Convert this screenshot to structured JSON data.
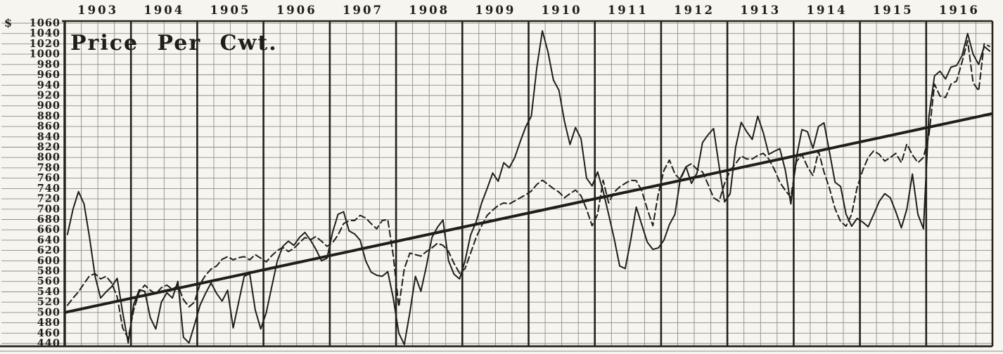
{
  "chart_data": {
    "type": "line",
    "title": "Price Per Cwt.",
    "currency_symbol": "$",
    "grid": true,
    "legend": "none",
    "colors": {
      "ink": "#211e17",
      "grid": "#8f8d85",
      "bold_grid": "#262219",
      "paper": "#f6f5f0"
    },
    "y_axis": {
      "min": 440,
      "max": 1060,
      "step": 20,
      "tick_labels": [
        "1060",
        "1040",
        "1020",
        "1000",
        "980",
        "960",
        "940",
        "920",
        "900",
        "880",
        "860",
        "840",
        "820",
        "800",
        "780",
        "760",
        "740",
        "720",
        "700",
        "680",
        "660",
        "640",
        "620",
        "600",
        "580",
        "560",
        "540",
        "520",
        "500",
        "480",
        "460",
        "440"
      ]
    },
    "x_axis": {
      "years": [
        "1903",
        "1904",
        "1905",
        "1906",
        "1907",
        "1908",
        "1909",
        "1910",
        "1911",
        "1912",
        "1913",
        "1914",
        "1915",
        "1916"
      ],
      "subdivisions_per_year": 4,
      "points_per_year": 12
    },
    "series": [
      {
        "name": "solid-price-line",
        "style": "solid",
        "values": [
          651,
          700,
          734,
          710,
          645,
          570,
          528,
          540,
          550,
          566,
          500,
          441,
          516,
          544,
          541,
          490,
          468,
          520,
          538,
          528,
          560,
          452,
          441,
          476,
          514,
          537,
          557,
          537,
          522,
          543,
          470,
          520,
          570,
          575,
          505,
          468,
          500,
          550,
          600,
          628,
          638,
          630,
          645,
          655,
          640,
          622,
          600,
          605,
          655,
          690,
          695,
          658,
          652,
          640,
          600,
          578,
          572,
          570,
          579,
          528,
          460,
          438,
          500,
          570,
          541,
          590,
          645,
          665,
          679,
          600,
          574,
          565,
          600,
          650,
          675,
          712,
          740,
          770,
          754,
          790,
          780,
          800,
          831,
          860,
          880,
          975,
          1045,
          1005,
          950,
          930,
          870,
          825,
          858,
          836,
          760,
          745,
          772,
          735,
          690,
          643,
          590,
          585,
          640,
          704,
          670,
          636,
          622,
          625,
          640,
          670,
          690,
          760,
          782,
          750,
          770,
          829,
          844,
          856,
          783,
          714,
          730,
          820,
          868,
          850,
          835,
          880,
          848,
          806,
          812,
          817,
          775,
          710,
          800,
          854,
          850,
          818,
          860,
          867,
          810,
          752,
          744,
          690,
          667,
          682,
          675,
          666,
          690,
          715,
          730,
          722,
          695,
          664,
          700,
          768,
          690,
          662,
          880,
          958,
          967,
          952,
          975,
          978,
          997,
          1040,
          1000,
          980,
          1015,
          1006
        ]
      },
      {
        "name": "dashed-price-line",
        "style": "dashed",
        "values": [
          514,
          528,
          540,
          556,
          571,
          575,
          565,
          570,
          557,
          530,
          470,
          450,
          505,
          540,
          553,
          543,
          536,
          548,
          553,
          545,
          552,
          525,
          511,
          520,
          555,
          572,
          584,
          590,
          603,
          608,
          602,
          606,
          608,
          602,
          612,
          605,
          598,
          610,
          620,
          626,
          618,
          624,
          635,
          645,
          641,
          647,
          638,
          628,
          635,
          650,
          672,
          678,
          678,
          688,
          683,
          672,
          662,
          678,
          680,
          610,
          511,
          585,
          615,
          612,
          609,
          618,
          625,
          634,
          630,
          618,
          595,
          576,
          585,
          615,
          645,
          668,
          688,
          698,
          707,
          712,
          710,
          716,
          722,
          728,
          735,
          748,
          756,
          748,
          740,
          733,
          722,
          730,
          737,
          726,
          700,
          668,
          690,
          756,
          712,
          733,
          743,
          750,
          756,
          755,
          736,
          700,
          668,
          730,
          775,
          795,
          768,
          757,
          782,
          788,
          777,
          772,
          748,
          722,
          715,
          750,
          775,
          788,
          803,
          797,
          797,
          804,
          808,
          797,
          777,
          752,
          736,
          723,
          792,
          806,
          782,
          765,
          812,
          772,
          740,
          701,
          676,
          667,
          690,
          742,
          775,
          800,
          813,
          806,
          793,
          800,
          808,
          790,
          826,
          805,
          790,
          800,
          843,
          942,
          919,
          916,
          942,
          948,
          985,
          1026,
          945,
          929,
          1020,
          1015
        ]
      },
      {
        "name": "trend-line",
        "style": "straight",
        "start_value": 500,
        "end_value": 885
      }
    ]
  }
}
